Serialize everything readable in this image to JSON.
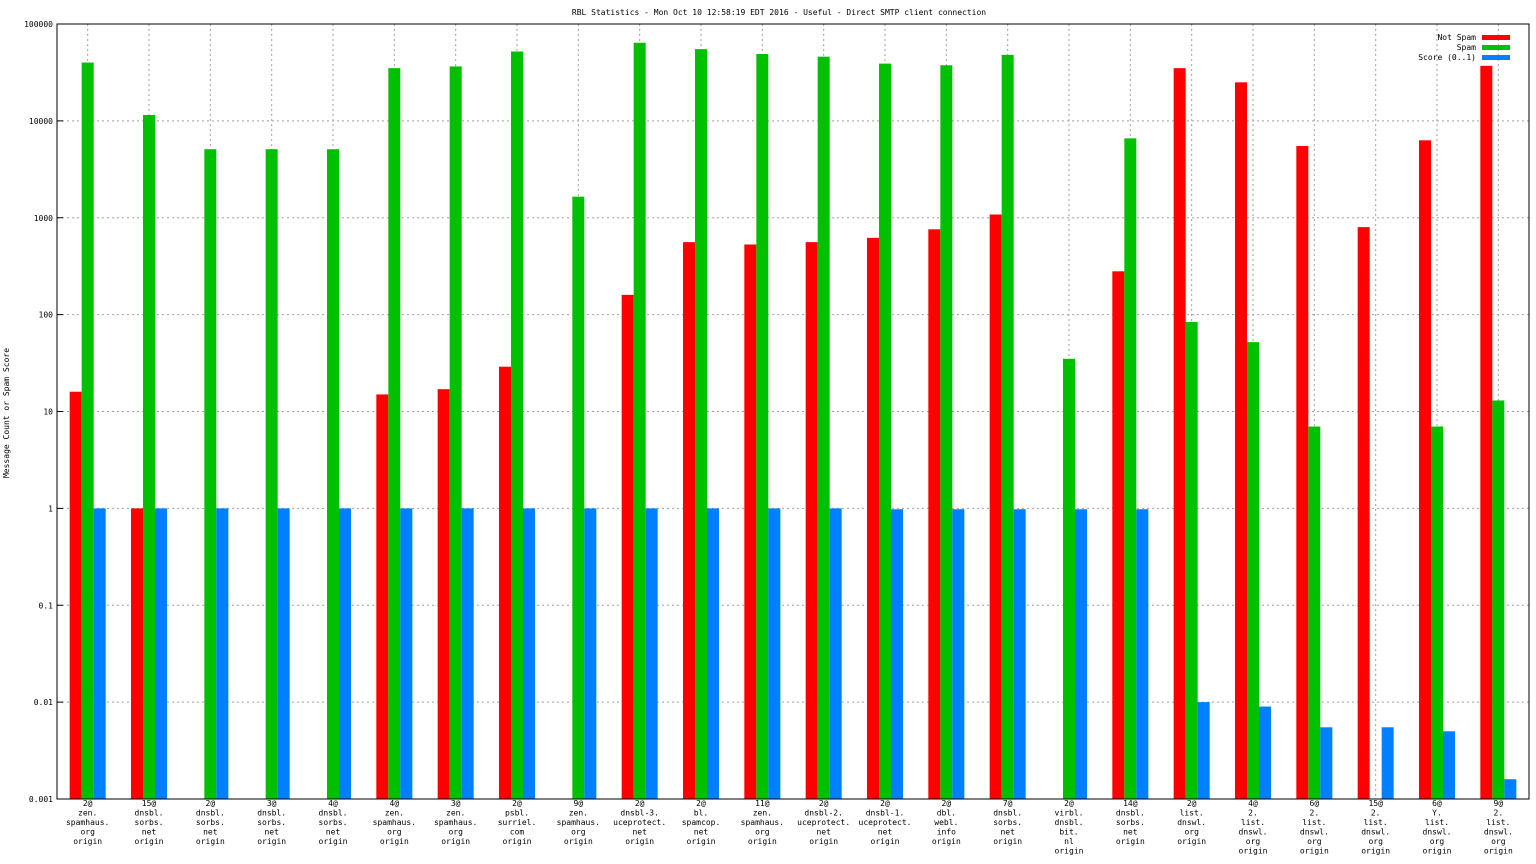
{
  "chart_data": {
    "type": "bar",
    "title": "RBL Statistics - Mon Oct 10 12:58:19 EDT 2016 - Useful - Direct SMTP client connection",
    "xlabel": "",
    "ylabel": "Message Count or Spam Score",
    "yscale": "log",
    "ylim": [
      0.001,
      100000
    ],
    "yticks": [
      "0.001",
      "0.01",
      "0.1",
      "1",
      "10",
      "100",
      "1000",
      "10000",
      "100000"
    ],
    "grid": true,
    "legend_position": "top-right",
    "categories": [
      [
        "2@",
        "zen.",
        "spamhaus.",
        "org",
        "origin"
      ],
      [
        "15@",
        "dnsbl.",
        "sorbs.",
        "net",
        "origin"
      ],
      [
        "2@",
        "dnsbl.",
        "sorbs.",
        "net",
        "origin"
      ],
      [
        "3@",
        "dnsbl.",
        "sorbs.",
        "net",
        "origin"
      ],
      [
        "4@",
        "dnsbl.",
        "sorbs.",
        "net",
        "origin"
      ],
      [
        "4@",
        "zen.",
        "spamhaus.",
        "org",
        "origin"
      ],
      [
        "3@",
        "zen.",
        "spamhaus.",
        "org",
        "origin"
      ],
      [
        "2@",
        "psbl.",
        "surriel.",
        "com",
        "origin"
      ],
      [
        "9@",
        "zen.",
        "spamhaus.",
        "org",
        "origin"
      ],
      [
        "2@",
        "dnsbl-3.",
        "uceprotect.",
        "net",
        "origin"
      ],
      [
        "2@",
        "bl.",
        "spamcop.",
        "net",
        "origin"
      ],
      [
        "11@",
        "zen.",
        "spamhaus.",
        "org",
        "origin"
      ],
      [
        "2@",
        "dnsbl-2.",
        "uceprotect.",
        "net",
        "origin"
      ],
      [
        "2@",
        "dnsbl-1.",
        "uceprotect.",
        "net",
        "origin"
      ],
      [
        "2@",
        "dbl.",
        "webl.",
        "info",
        "origin"
      ],
      [
        "7@",
        "dnsbl.",
        "sorbs.",
        "net",
        "origin"
      ],
      [
        "2@",
        "virbl.",
        "dnsbl.",
        "bit.",
        "nl",
        "origin"
      ],
      [
        "14@",
        "dnsbl.",
        "sorbs.",
        "net",
        "origin"
      ],
      [
        "2@",
        "list.",
        "dnswl.",
        "org",
        "origin"
      ],
      [
        "4@",
        "2.",
        "list.",
        "dnswl.",
        "org",
        "origin"
      ],
      [
        "6@",
        "2.",
        "list.",
        "dnswl.",
        "org",
        "origin"
      ],
      [
        "15@",
        "2.",
        "list.",
        "dnswl.",
        "org",
        "origin"
      ],
      [
        "6@",
        "Y.",
        "list.",
        "dnswl.",
        "org",
        "origin"
      ],
      [
        "9@",
        "2.",
        "list.",
        "dnswl.",
        "org",
        "origin"
      ]
    ],
    "series": [
      {
        "name": "Not Spam",
        "color": "#ff0000",
        "values": [
          16,
          1,
          null,
          null,
          null,
          15,
          17,
          29,
          null,
          160,
          560,
          530,
          560,
          620,
          760,
          1080,
          null,
          280,
          35000,
          25000,
          5500,
          800,
          6300,
          37000
        ]
      },
      {
        "name": "Spam",
        "color": "#00c000",
        "values": [
          40000,
          11500,
          5100,
          5100,
          5100,
          35000,
          36500,
          52000,
          1650,
          64000,
          55000,
          49000,
          46000,
          39000,
          37500,
          48000,
          35,
          6600,
          84,
          52,
          7,
          null,
          7,
          13
        ]
      },
      {
        "name": "Score (0..1)",
        "color": "#0080ff",
        "values": [
          1,
          1,
          1,
          1,
          1,
          1,
          1,
          1,
          1,
          1,
          1,
          1,
          1,
          0.98,
          0.98,
          0.98,
          0.98,
          0.98,
          0.01,
          0.009,
          0.0055,
          0.0055,
          0.005,
          0.0016
        ]
      }
    ]
  }
}
